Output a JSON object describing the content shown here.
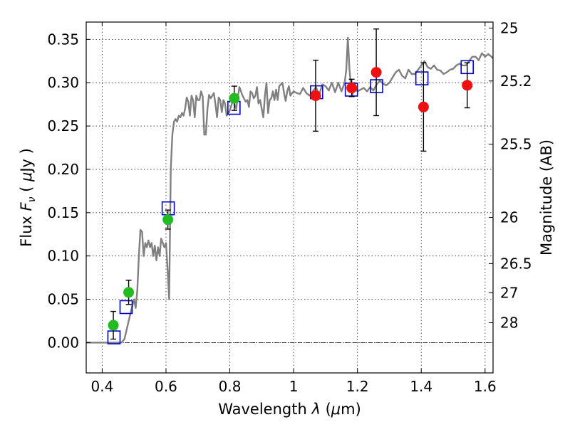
{
  "chart_data": {
    "type": "scatter",
    "xlabel": "Wavelength  λ (μm)",
    "ylabel": "Flux  F_ν  ( μJy )",
    "ylabel_parts": {
      "pre": "Flux  ",
      "var": "F",
      "sub": "ν",
      "mid": "  ( ",
      "mu": "μ",
      "post": "Jy )"
    },
    "xlabel_parts": {
      "pre": "Wavelength  ",
      "var": "λ",
      "mid": " (",
      "mu": "μ",
      "post": "m)"
    },
    "y2label": "Magnitude (AB)",
    "xlim": [
      0.35,
      1.625
    ],
    "ylim": [
      -0.035,
      0.37
    ],
    "grid": true,
    "x_ticks": [
      {
        "value": 0.4,
        "label": "0.4"
      },
      {
        "value": 0.6,
        "label": "0.6"
      },
      {
        "value": 0.8,
        "label": "0.8"
      },
      {
        "value": 1.0,
        "label": "1"
      },
      {
        "value": 1.2,
        "label": "1.2"
      },
      {
        "value": 1.4,
        "label": "1.4"
      },
      {
        "value": 1.6,
        "label": "1.6"
      }
    ],
    "y_ticks": [
      {
        "value": 0.0,
        "label": "0.00"
      },
      {
        "value": 0.05,
        "label": "0.05"
      },
      {
        "value": 0.1,
        "label": "0.10"
      },
      {
        "value": 0.15,
        "label": "0.15"
      },
      {
        "value": 0.2,
        "label": "0.20"
      },
      {
        "value": 0.25,
        "label": "0.25"
      },
      {
        "value": 0.3,
        "label": "0.30"
      },
      {
        "value": 0.35,
        "label": "0.35"
      }
    ],
    "mag_ticks": [
      {
        "value": 25.0,
        "label": "25"
      },
      {
        "value": 25.2,
        "label": "25.2"
      },
      {
        "value": 25.5,
        "label": "25.5"
      },
      {
        "value": 26.0,
        "label": "26"
      },
      {
        "value": 26.5,
        "label": "26.5"
      },
      {
        "value": 27.0,
        "label": "27"
      },
      {
        "value": 28.0,
        "label": "28"
      }
    ],
    "zero_line": 0,
    "colors": {
      "model": "#808080",
      "green": "#22bb22",
      "red": "#ee1111",
      "box": "#0000cc",
      "errorbar": "#000000"
    },
    "series": [
      {
        "kind": "model_spectrum",
        "x": [
          0.35,
          0.46,
          0.47,
          0.48,
          0.49,
          0.5,
          0.505,
          0.51,
          0.515,
          0.52,
          0.525,
          0.53,
          0.535,
          0.54,
          0.545,
          0.55,
          0.555,
          0.56,
          0.565,
          0.57,
          0.575,
          0.58,
          0.585,
          0.59,
          0.595,
          0.6,
          0.605,
          0.61,
          0.615,
          0.62,
          0.625,
          0.63,
          0.635,
          0.64,
          0.645,
          0.65,
          0.655,
          0.66,
          0.665,
          0.67,
          0.675,
          0.68,
          0.685,
          0.69,
          0.695,
          0.7,
          0.705,
          0.71,
          0.715,
          0.72,
          0.725,
          0.73,
          0.735,
          0.74,
          0.745,
          0.75,
          0.755,
          0.76,
          0.765,
          0.77,
          0.775,
          0.78,
          0.785,
          0.79,
          0.8,
          0.81,
          0.82,
          0.83,
          0.84,
          0.85,
          0.855,
          0.86,
          0.865,
          0.87,
          0.875,
          0.88,
          0.885,
          0.89,
          0.895,
          0.9,
          0.905,
          0.91,
          0.915,
          0.92,
          0.925,
          0.93,
          0.935,
          0.94,
          0.945,
          0.95,
          0.955,
          0.96,
          0.965,
          0.97,
          0.975,
          0.98,
          0.985,
          0.99,
          0.995,
          1.0,
          1.01,
          1.02,
          1.03,
          1.04,
          1.05,
          1.06,
          1.07,
          1.08,
          1.09,
          1.1,
          1.11,
          1.12,
          1.13,
          1.14,
          1.15,
          1.16,
          1.165,
          1.17,
          1.175,
          1.18,
          1.185,
          1.19,
          1.2,
          1.21,
          1.22,
          1.23,
          1.24,
          1.25,
          1.26,
          1.27,
          1.28,
          1.29,
          1.3,
          1.31,
          1.32,
          1.33,
          1.34,
          1.35,
          1.36,
          1.37,
          1.38,
          1.39,
          1.4,
          1.41,
          1.42,
          1.43,
          1.44,
          1.45,
          1.46,
          1.47,
          1.48,
          1.49,
          1.5,
          1.51,
          1.52,
          1.53,
          1.54,
          1.55,
          1.56,
          1.57,
          1.58,
          1.59,
          1.6,
          1.61,
          1.62,
          1.625
        ],
        "y": [
          0.0,
          0.0,
          0.004,
          0.02,
          0.036,
          0.05,
          0.04,
          0.06,
          0.1,
          0.13,
          0.128,
          0.1,
          0.115,
          0.11,
          0.118,
          0.11,
          0.115,
          0.1,
          0.112,
          0.095,
          0.11,
          0.1,
          0.12,
          0.115,
          0.11,
          0.115,
          0.085,
          0.05,
          0.2,
          0.24,
          0.255,
          0.258,
          0.255,
          0.262,
          0.26,
          0.265,
          0.262,
          0.27,
          0.283,
          0.278,
          0.262,
          0.285,
          0.28,
          0.26,
          0.285,
          0.28,
          0.28,
          0.29,
          0.284,
          0.24,
          0.24,
          0.27,
          0.286,
          0.282,
          0.285,
          0.288,
          0.275,
          0.26,
          0.283,
          0.28,
          0.266,
          0.28,
          0.276,
          0.262,
          0.268,
          0.28,
          0.27,
          0.295,
          0.285,
          0.278,
          0.28,
          0.272,
          0.29,
          0.288,
          0.282,
          0.285,
          0.295,
          0.276,
          0.28,
          0.27,
          0.26,
          0.285,
          0.3,
          0.265,
          0.28,
          0.282,
          0.29,
          0.28,
          0.292,
          0.28,
          0.296,
          0.298,
          0.3,
          0.288,
          0.279,
          0.29,
          0.296,
          0.285,
          0.288,
          0.29,
          0.288,
          0.287,
          0.294,
          0.288,
          0.285,
          0.29,
          0.295,
          0.286,
          0.298,
          0.296,
          0.291,
          0.3,
          0.289,
          0.3,
          0.29,
          0.3,
          0.315,
          0.352,
          0.315,
          0.296,
          0.286,
          0.3,
          0.29,
          0.292,
          0.294,
          0.29,
          0.295,
          0.291,
          0.298,
          0.302,
          0.299,
          0.297,
          0.3,
          0.306,
          0.312,
          0.315,
          0.308,
          0.305,
          0.315,
          0.31,
          0.31,
          0.315,
          0.32,
          0.325,
          0.318,
          0.316,
          0.32,
          0.315,
          0.314,
          0.31,
          0.312,
          0.315,
          0.316,
          0.32,
          0.322,
          0.32,
          0.32,
          0.325,
          0.33,
          0.33,
          0.326,
          0.334,
          0.33,
          0.333,
          0.33,
          0.328
        ]
      },
      {
        "kind": "green_points",
        "points": [
          {
            "x": 0.435,
            "y": 0.02,
            "err": 0.016
          },
          {
            "x": 0.483,
            "y": 0.058,
            "err": 0.014
          },
          {
            "x": 0.606,
            "y": 0.142,
            "err": 0.011
          },
          {
            "x": 0.814,
            "y": 0.282,
            "err": 0.014
          }
        ]
      },
      {
        "kind": "red_points",
        "points": [
          {
            "x": 1.069,
            "y": 0.285,
            "err": 0.041
          },
          {
            "x": 1.182,
            "y": 0.294,
            "err": 0.01
          },
          {
            "x": 1.259,
            "y": 0.312,
            "err": 0.05
          },
          {
            "x": 1.407,
            "y": 0.272,
            "err": 0.051
          },
          {
            "x": 1.544,
            "y": 0.297,
            "err": 0.026
          }
        ]
      },
      {
        "kind": "model_boxes",
        "points": [
          {
            "x": 0.437,
            "y": 0.006
          },
          {
            "x": 0.475,
            "y": 0.041
          },
          {
            "x": 0.607,
            "y": 0.155
          },
          {
            "x": 0.813,
            "y": 0.271
          },
          {
            "x": 1.072,
            "y": 0.289
          },
          {
            "x": 1.181,
            "y": 0.292
          },
          {
            "x": 1.26,
            "y": 0.296
          },
          {
            "x": 1.402,
            "y": 0.305
          },
          {
            "x": 1.544,
            "y": 0.318
          }
        ]
      }
    ]
  }
}
